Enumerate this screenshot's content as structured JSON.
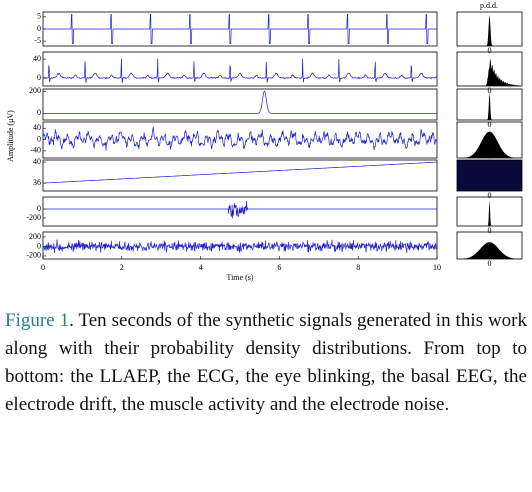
{
  "figure": {
    "ylabel": "Amplitude (μV)",
    "xlabel": "Time (s)",
    "pdd_title": "p.d.d.",
    "xlim": [
      0,
      10
    ],
    "xticks": [
      0,
      2,
      4,
      6,
      8,
      10
    ],
    "panels": [
      {
        "ylim": [
          -7,
          7
        ],
        "yticks": [
          5,
          0,
          -5
        ],
        "pdd_label": "0"
      },
      {
        "ylim": [
          -17,
          55
        ],
        "yticks": [
          40,
          0
        ],
        "pdd_label": "0"
      },
      {
        "ylim": [
          -60,
          220
        ],
        "yticks": [
          200,
          0
        ],
        "pdd_label": "0"
      },
      {
        "ylim": [
          -65,
          62
        ],
        "yticks": [
          40,
          0,
          -40
        ],
        "pdd_label": "0"
      },
      {
        "ylim": [
          34.5,
          40.4
        ],
        "yticks": [
          40,
          36
        ],
        "pdd_label": "0"
      },
      {
        "ylim": [
          -380,
          270
        ],
        "yticks": [
          0,
          -200
        ],
        "pdd_label": "0"
      },
      {
        "ylim": [
          -265,
          305
        ],
        "yticks": [
          200,
          0,
          -200
        ],
        "pdd_label": "0"
      }
    ]
  },
  "caption": {
    "label": "Figure 1",
    "text": ".  Ten seconds of the synthetic signals generated in this work along with their probability density distributions. From top to bottom: the LLAEP, the ECG, the eye blinking, the basal EEG, the electrode drift, the muscle activity and the electrode noise."
  }
}
